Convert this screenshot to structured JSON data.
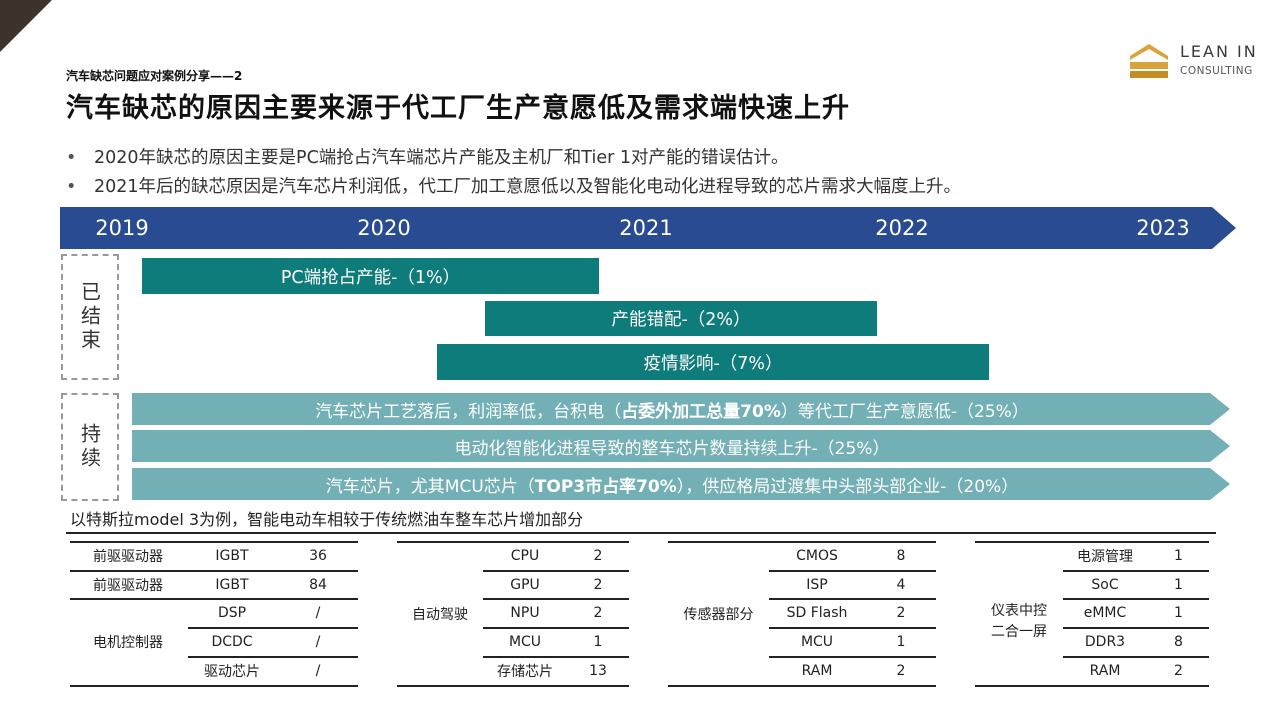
{
  "header": {
    "subtitle": "汽车缺芯问题应对案例分享——2",
    "title": "汽车缺芯的原因主要来源于代工厂生产意愿低及需求端快速上升"
  },
  "logo": {
    "name": "LEAN IN",
    "sub": "CONSULTING",
    "icon": "stacked-chevron-logo-icon"
  },
  "bullets": [
    "2020年缺芯的原因主要是PC端抢占汽车端芯片产能及主机厂和Tier 1对产能的错误估计。",
    "2021年后的缺芯原因是汽车芯片利润低，代工厂加工意愿低以及智能化电动化进程导致的芯片需求大幅度上升。"
  ],
  "timeline": {
    "years": [
      "2019",
      "2020",
      "2021",
      "2022",
      "2023"
    ],
    "color": "#284b92"
  },
  "groups": {
    "ended": "已结束",
    "ongoing": "持续"
  },
  "ended_bars": [
    "PC端抢占产能-（1%）",
    "产能错配-（2%）",
    "疫情影响-（7%）"
  ],
  "ongoing_bars": [
    {
      "before": "汽车芯片工艺落后，利润率低，台积电（",
      "bold": "占委外加工总量70%",
      "after": "）等代工厂生产意愿低-（25%）"
    },
    {
      "before": "电动化智能化进程导致的整车芯片数量持续上升-（25%）",
      "bold": "",
      "after": ""
    },
    {
      "before": "汽车芯片，尤其MCU芯片（",
      "bold": "TOP3市占率70%",
      "after": "），供应格局过渡集中头部头部企业-（20%）"
    }
  ],
  "colors": {
    "ended_bar": "#0e7c7b",
    "ongoing_bar": "#73b0b6",
    "timeline": "#284b92"
  },
  "note": "以特斯拉model 3为例，智能电动车相较于传统燃油车整车芯片增加部分",
  "tables": {
    "t1": {
      "rows": [
        [
          "前驱驱动器",
          "IGBT",
          "36"
        ],
        [
          "前驱驱动器",
          "IGBT",
          "84"
        ],
        [
          "",
          "DSP",
          "/"
        ],
        [
          "",
          "DCDC",
          "/"
        ],
        [
          "",
          "驱动芯片",
          "/"
        ]
      ],
      "group_label": "电机控制器"
    },
    "t2": {
      "group_label": "自动驾驶",
      "rows": [
        [
          "CPU",
          "2"
        ],
        [
          "GPU",
          "2"
        ],
        [
          "NPU",
          "2"
        ],
        [
          "MCU",
          "1"
        ],
        [
          "存储芯片",
          "13"
        ]
      ]
    },
    "t3": {
      "group_label": "传感器部分",
      "rows": [
        [
          "CMOS",
          "8"
        ],
        [
          "ISP",
          "4"
        ],
        [
          "SD Flash",
          "2"
        ],
        [
          "MCU",
          "1"
        ],
        [
          "RAM",
          "2"
        ]
      ]
    },
    "t4": {
      "group_label_1": "仪表中控",
      "group_label_2": "二合一屏",
      "rows": [
        [
          "电源管理",
          "1"
        ],
        [
          "SoC",
          "1"
        ],
        [
          "eMMC",
          "1"
        ],
        [
          "DDR3",
          "8"
        ],
        [
          "RAM",
          "2"
        ]
      ]
    }
  }
}
